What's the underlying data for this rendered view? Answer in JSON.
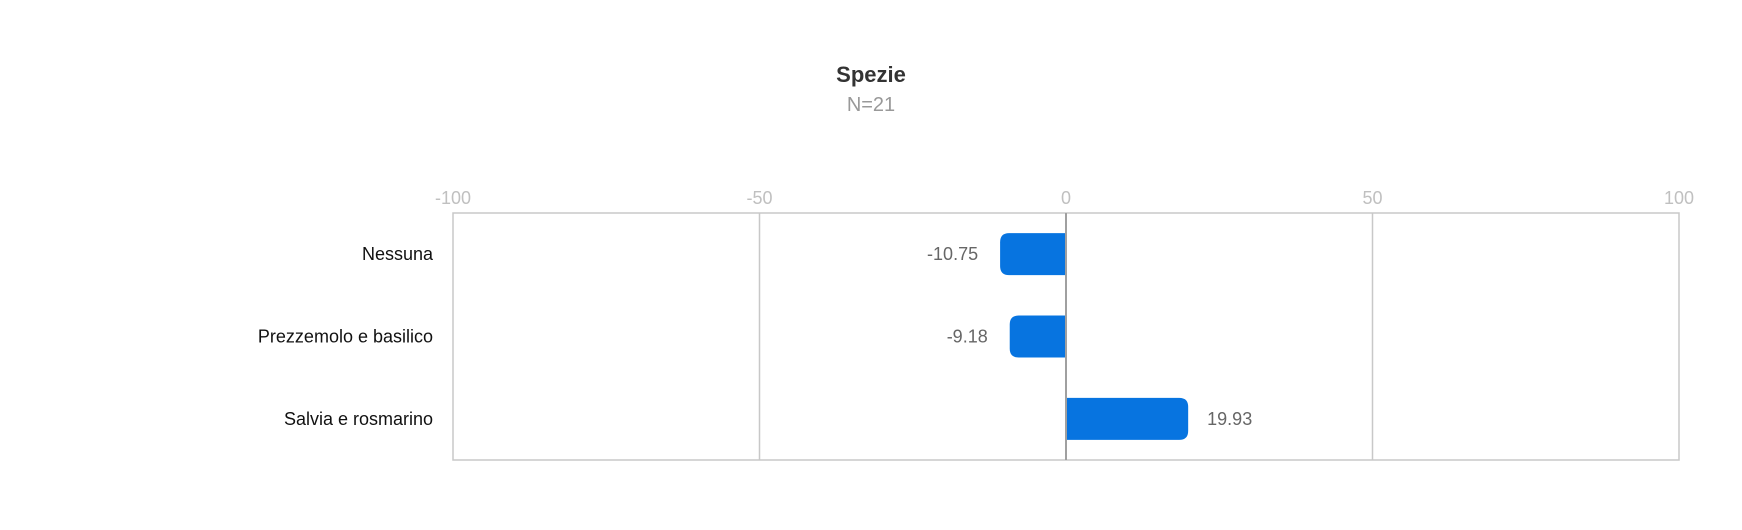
{
  "chart_data": {
    "type": "bar",
    "orientation": "horizontal",
    "title": "Spezie",
    "subtitle": "N=21",
    "categories": [
      "Nessuna",
      "Prezzemolo e basilico",
      "Salvia e rosmarino"
    ],
    "values": [
      -10.75,
      -9.18,
      19.93
    ],
    "value_labels": [
      "-10.75",
      "-9.18",
      "19.93"
    ],
    "xlim": [
      -100,
      100
    ],
    "xticks": [
      -100,
      -50,
      0,
      50,
      100
    ],
    "xtick_labels": [
      "-100",
      "-50",
      "0",
      "50",
      "100"
    ],
    "xaxis_position": "top",
    "grid": true,
    "legend": "none",
    "bar_color": "#0774e0"
  }
}
